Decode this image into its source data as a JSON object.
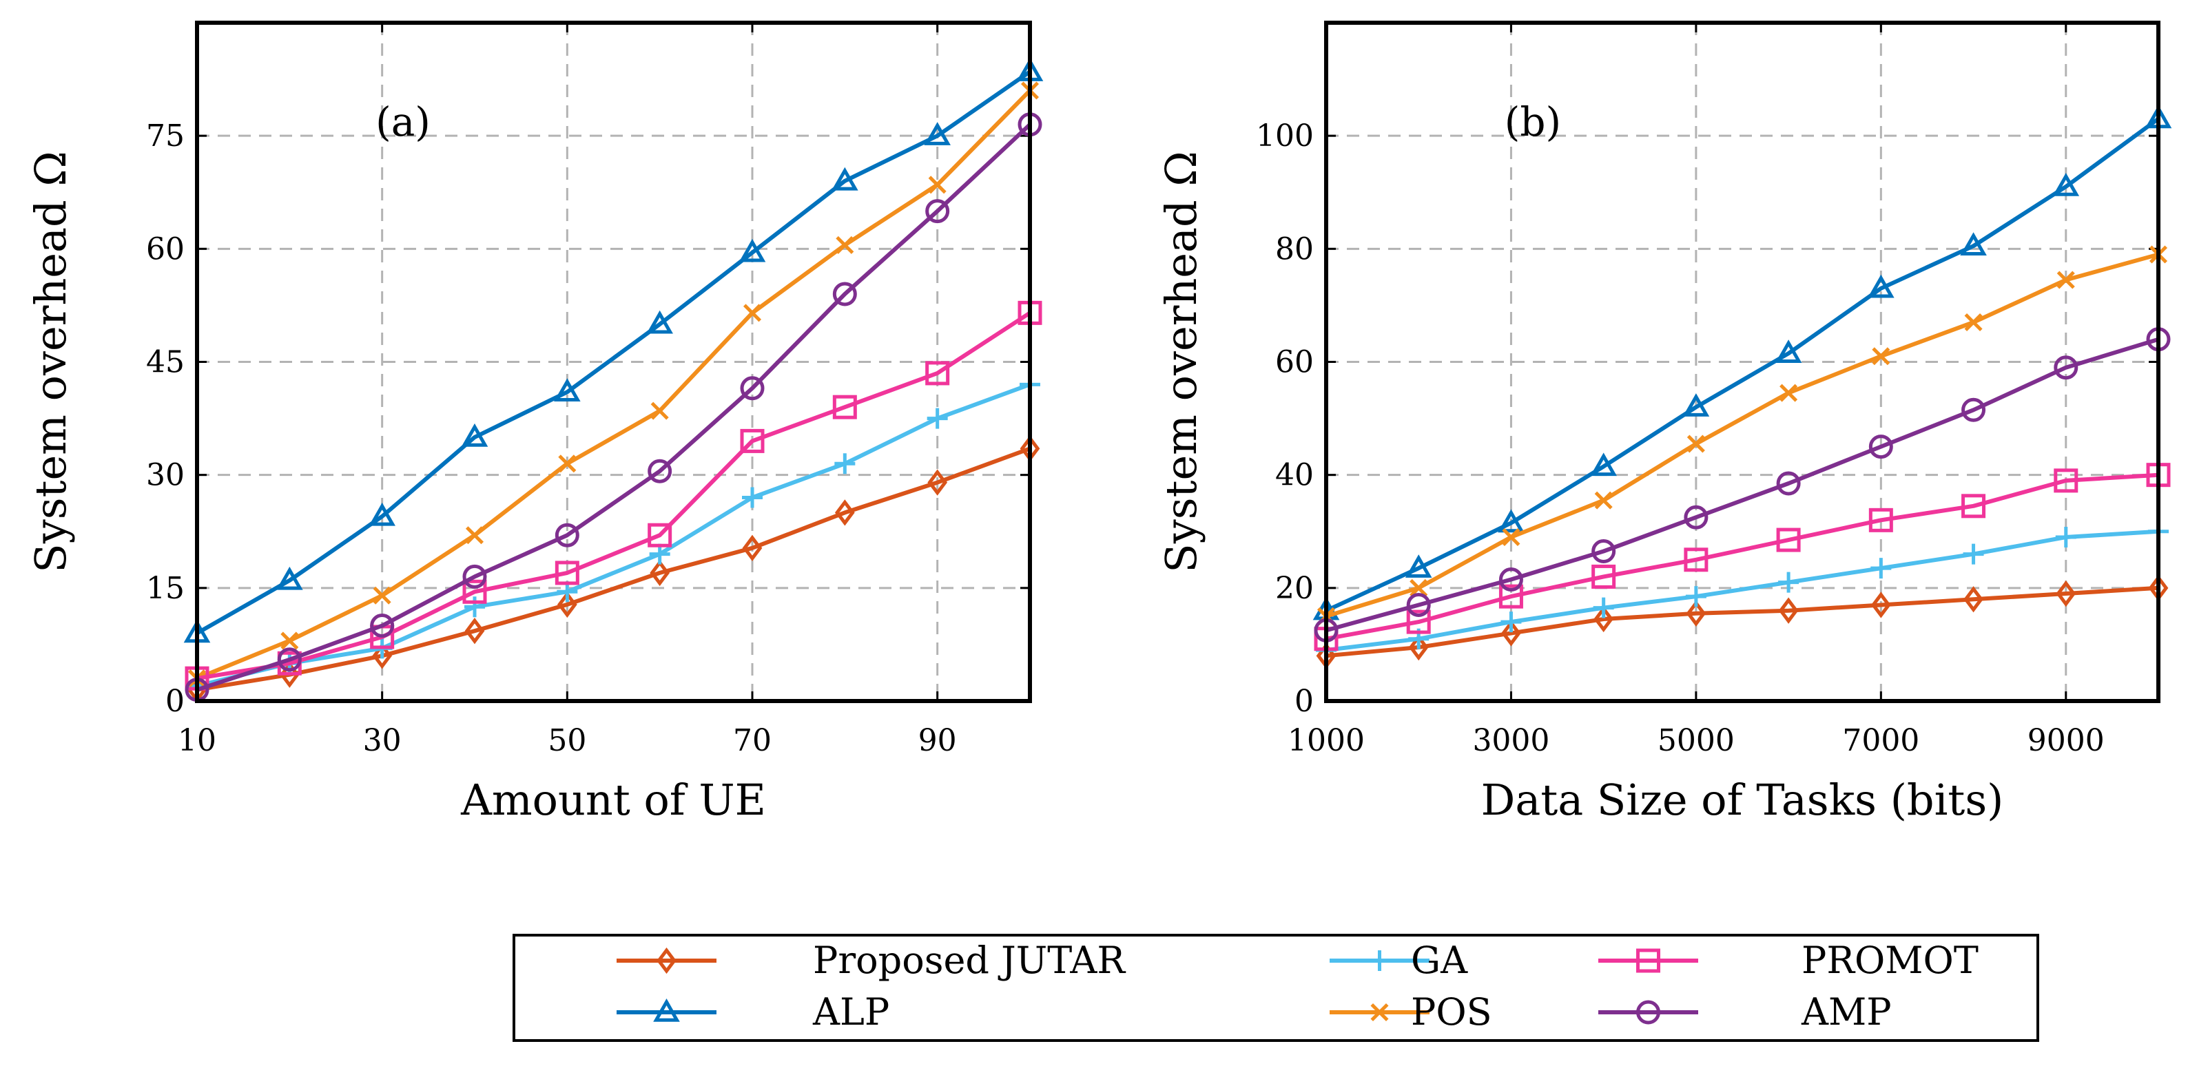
{
  "series_styles": [
    {
      "name": "Proposed JUTAR",
      "color": "#d95319",
      "marker": "diamond"
    },
    {
      "name": "ALP",
      "color": "#0072bd",
      "marker": "triangle"
    },
    {
      "name": "GA",
      "color": "#4dbeee",
      "marker": "plus"
    },
    {
      "name": "POS",
      "color": "#f28e1c",
      "marker": "x"
    },
    {
      "name": "PROMOT",
      "color": "#f0359a",
      "marker": "square"
    },
    {
      "name": "AMP",
      "color": "#7e2f8e",
      "marker": "circle"
    }
  ],
  "legend": {
    "entries": [
      "Proposed JUTAR",
      "GA",
      "PROMOT",
      "ALP",
      "POS",
      "AMP"
    ]
  },
  "chart_data": [
    {
      "type": "line",
      "panel_tag": "(a)",
      "title": "",
      "xlabel": "Amount of UE",
      "ylabel": "System overhead Ω",
      "xlim": [
        10,
        100
      ],
      "ylim": [
        0,
        90
      ],
      "xticks": [
        10,
        30,
        50,
        70,
        90
      ],
      "yticks": [
        0,
        15,
        30,
        45,
        60,
        75
      ],
      "xtick_labels": [
        "10",
        "30",
        "50",
        "70",
        "90"
      ],
      "ytick_labels": [
        "0",
        "15",
        "30",
        "45",
        "60",
        "75"
      ],
      "grid": true,
      "x": [
        10,
        20,
        30,
        40,
        50,
        60,
        70,
        80,
        90,
        100
      ],
      "series": [
        {
          "name": "Proposed JUTAR",
          "values": [
            1.5,
            3.5,
            6,
            9.3,
            12.8,
            17,
            20.3,
            25,
            29,
            33.5
          ]
        },
        {
          "name": "ALP",
          "values": [
            9,
            16,
            24.5,
            35,
            41,
            50,
            59.5,
            69,
            75,
            83.5
          ]
        },
        {
          "name": "GA",
          "values": [
            2,
            5,
            7,
            12.5,
            14.5,
            19.5,
            27,
            31.5,
            37.5,
            42
          ]
        },
        {
          "name": "POS",
          "values": [
            3,
            8,
            14,
            22,
            31.5,
            38.5,
            51.5,
            60.5,
            68.5,
            81
          ]
        },
        {
          "name": "PROMOT",
          "values": [
            3,
            5,
            8.5,
            14.5,
            17,
            22,
            34.5,
            39,
            43.5,
            51.5
          ]
        },
        {
          "name": "AMP",
          "values": [
            1.5,
            5.5,
            10,
            16.5,
            22,
            30.5,
            41.5,
            54,
            65,
            76.5
          ]
        }
      ]
    },
    {
      "type": "line",
      "panel_tag": "(b)",
      "title": "",
      "xlabel": "Data Size of Tasks (bits)",
      "ylabel": "System overhead Ω",
      "xlim": [
        1000,
        10000
      ],
      "ylim": [
        0,
        120
      ],
      "xticks": [
        1000,
        3000,
        5000,
        7000,
        9000
      ],
      "yticks": [
        0,
        20,
        40,
        60,
        80,
        100
      ],
      "xtick_labels": [
        "1000",
        "3000",
        "5000",
        "7000",
        "9000"
      ],
      "ytick_labels": [
        "0",
        "20",
        "40",
        "60",
        "80",
        "100"
      ],
      "grid": true,
      "x": [
        1000,
        2000,
        3000,
        4000,
        5000,
        6000,
        7000,
        8000,
        9000,
        10000
      ],
      "series": [
        {
          "name": "Proposed JUTAR",
          "values": [
            8,
            9.5,
            12,
            14.5,
            15.5,
            16,
            17,
            18,
            19,
            20
          ]
        },
        {
          "name": "ALP",
          "values": [
            16,
            23.5,
            31.5,
            41.5,
            52,
            61.5,
            73,
            80.5,
            91,
            103
          ]
        },
        {
          "name": "GA",
          "values": [
            9,
            11,
            14,
            16.5,
            18.5,
            21,
            23.5,
            26,
            29,
            30
          ]
        },
        {
          "name": "POS",
          "values": [
            15,
            20,
            29,
            35.5,
            45.5,
            54.5,
            61,
            67,
            74.5,
            79
          ]
        },
        {
          "name": "PROMOT",
          "values": [
            11,
            14,
            18.5,
            22,
            25,
            28.5,
            32,
            34.5,
            39,
            40
          ]
        },
        {
          "name": "AMP",
          "values": [
            12.5,
            17,
            21.5,
            26.5,
            32.5,
            38.5,
            45,
            51.5,
            59,
            64
          ]
        }
      ]
    }
  ]
}
